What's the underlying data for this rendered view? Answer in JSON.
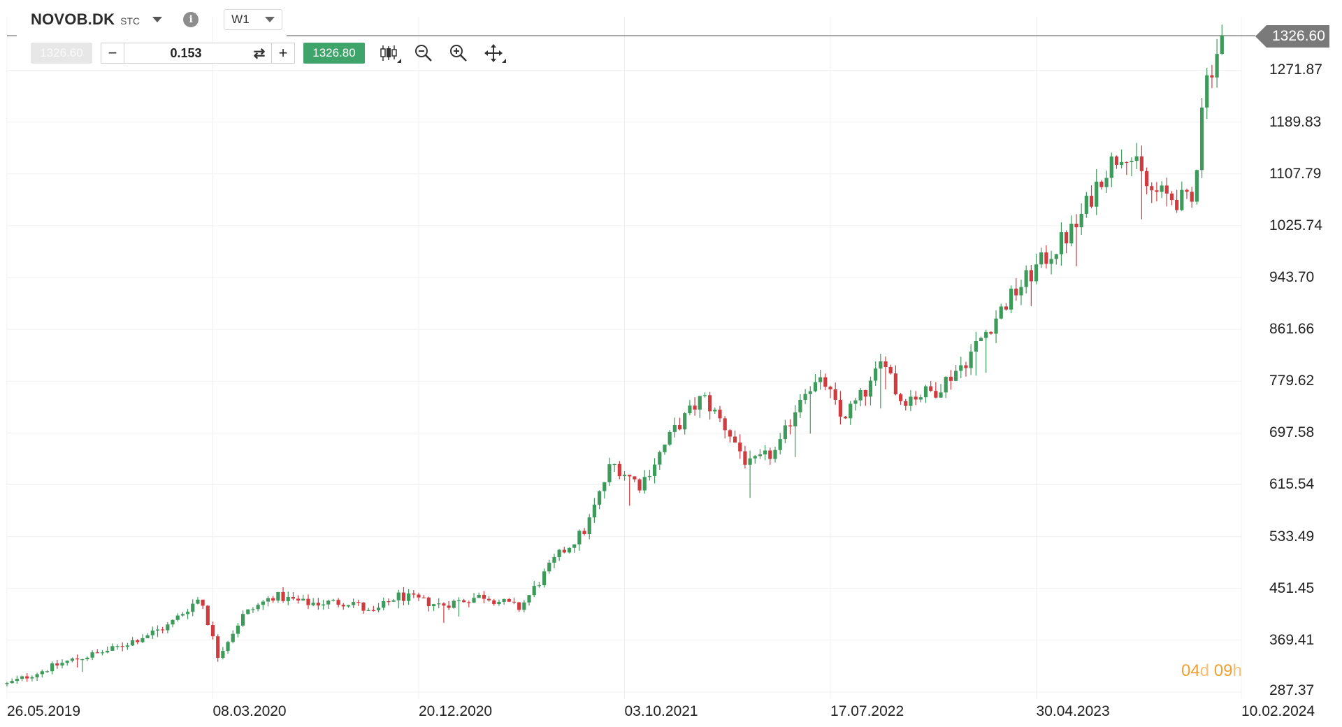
{
  "header": {
    "symbol": "NOVOB.DK",
    "symbol_type": "STC",
    "info_icon": "info-icon",
    "timeframe": "W1"
  },
  "trade": {
    "sell_price": "1326.60",
    "minus_label": "−",
    "quantity": "0.153",
    "swap_icon": "swap-icon",
    "plus_label": "+",
    "buy_price": "1326.80",
    "tools": [
      "candlestick-type-icon",
      "zoom-out-icon",
      "zoom-in-icon",
      "pan-move-icon"
    ]
  },
  "current_price": "1326.60",
  "countdown": {
    "days": "04",
    "days_unit": "d",
    "hours": "09",
    "hours_unit": "h"
  },
  "colors": {
    "up": "#3d9a5b",
    "down": "#cf3b3f",
    "price_line": "#7a7a7a",
    "buy": "#3fa46a",
    "countdown": "#f0a030"
  },
  "chart_data": {
    "type": "candlestick",
    "title": "",
    "timeframe": "W1",
    "x_ticks": [
      "26.05.2019",
      "08.03.2020",
      "20.12.2020",
      "03.10.2021",
      "17.07.2022",
      "30.04.2023",
      "10.02.2024"
    ],
    "y_ticks": [
      "1271.87",
      "1189.83",
      "1107.79",
      "1025.74",
      "943.70",
      "861.66",
      "779.62",
      "697.58",
      "615.54",
      "533.49",
      "451.45",
      "369.41",
      "287.37"
    ],
    "ylim": [
      287.37,
      1326.6
    ],
    "xlim": [
      "2019-05-26",
      "2024-02-10"
    ],
    "grid": true,
    "last_price": 1326.6,
    "close_path": [
      [
        "2019-05-26",
        300
      ],
      [
        "2019-08-15",
        335
      ],
      [
        "2019-10-20",
        355
      ],
      [
        "2020-01-05",
        392
      ],
      [
        "2020-02-20",
        438
      ],
      [
        "2020-03-15",
        345
      ],
      [
        "2020-04-20",
        410
      ],
      [
        "2020-06-01",
        440
      ],
      [
        "2020-07-15",
        428
      ],
      [
        "2020-09-20",
        430
      ],
      [
        "2020-10-15",
        410
      ],
      [
        "2020-11-20",
        440
      ],
      [
        "2021-01-20",
        425
      ],
      [
        "2021-03-20",
        440
      ],
      [
        "2021-05-10",
        420
      ],
      [
        "2021-06-30",
        500
      ],
      [
        "2021-08-10",
        545
      ],
      [
        "2021-09-15",
        650
      ],
      [
        "2021-10-25",
        615
      ],
      [
        "2021-12-10",
        700
      ],
      [
        "2022-01-20",
        755
      ],
      [
        "2022-02-25",
        700
      ],
      [
        "2022-03-25",
        645
      ],
      [
        "2022-05-05",
        670
      ],
      [
        "2022-06-10",
        770
      ],
      [
        "2022-07-10",
        775
      ],
      [
        "2022-08-01",
        720
      ],
      [
        "2022-09-10",
        770
      ],
      [
        "2022-10-01",
        820
      ],
      [
        "2022-10-20",
        750
      ],
      [
        "2022-12-10",
        765
      ],
      [
        "2023-01-20",
        810
      ],
      [
        "2023-03-20",
        905
      ],
      [
        "2023-05-01",
        960
      ],
      [
        "2023-06-25",
        1025
      ],
      [
        "2023-08-01",
        1110
      ],
      [
        "2023-09-01",
        1150
      ],
      [
        "2023-10-05",
        1080
      ],
      [
        "2023-12-05",
        1060
      ],
      [
        "2023-12-18",
        1240
      ],
      [
        "2024-01-15",
        1326.6
      ]
    ]
  }
}
